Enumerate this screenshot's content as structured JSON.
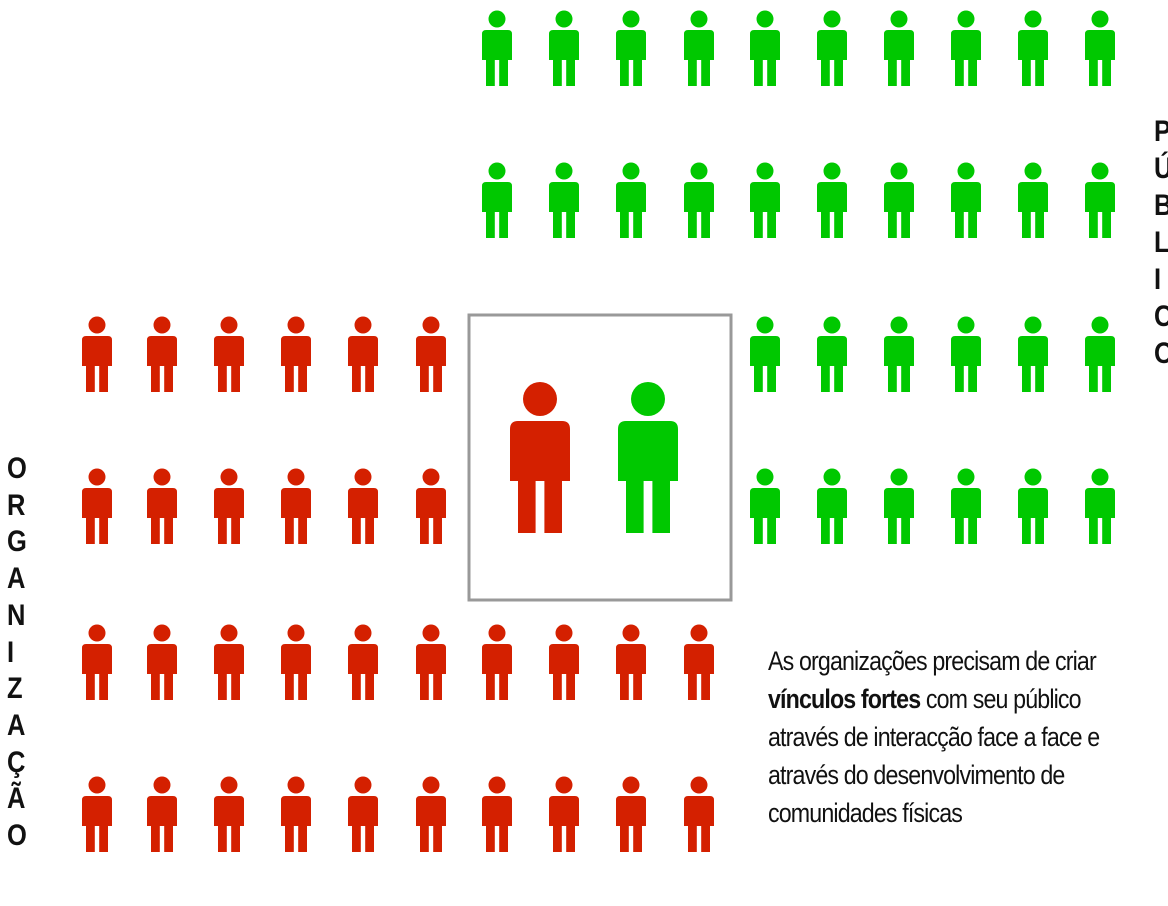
{
  "labels": {
    "organizacao": [
      "O",
      "R",
      "G",
      "A",
      "N",
      "I",
      "Z",
      "A",
      "Ç",
      "Ã",
      "O"
    ],
    "publico": [
      "P",
      "Ú",
      "B",
      "L",
      "I",
      "C",
      "O"
    ]
  },
  "caption": {
    "line1": "As organizações precisam de criar",
    "line2_bold": "vínculos fortes",
    "line2_rest": " com seu público",
    "line3": "através de interacção face a face e",
    "line4": "através do desenvolvimento de",
    "line5": "comunidades físicas"
  },
  "colors": {
    "organization": "#d42000",
    "public": "#00c800",
    "frame": "#999999"
  },
  "groups": {
    "organization_count": 32,
    "public_count": 32,
    "highlighted_pair": [
      "organization",
      "public"
    ]
  }
}
